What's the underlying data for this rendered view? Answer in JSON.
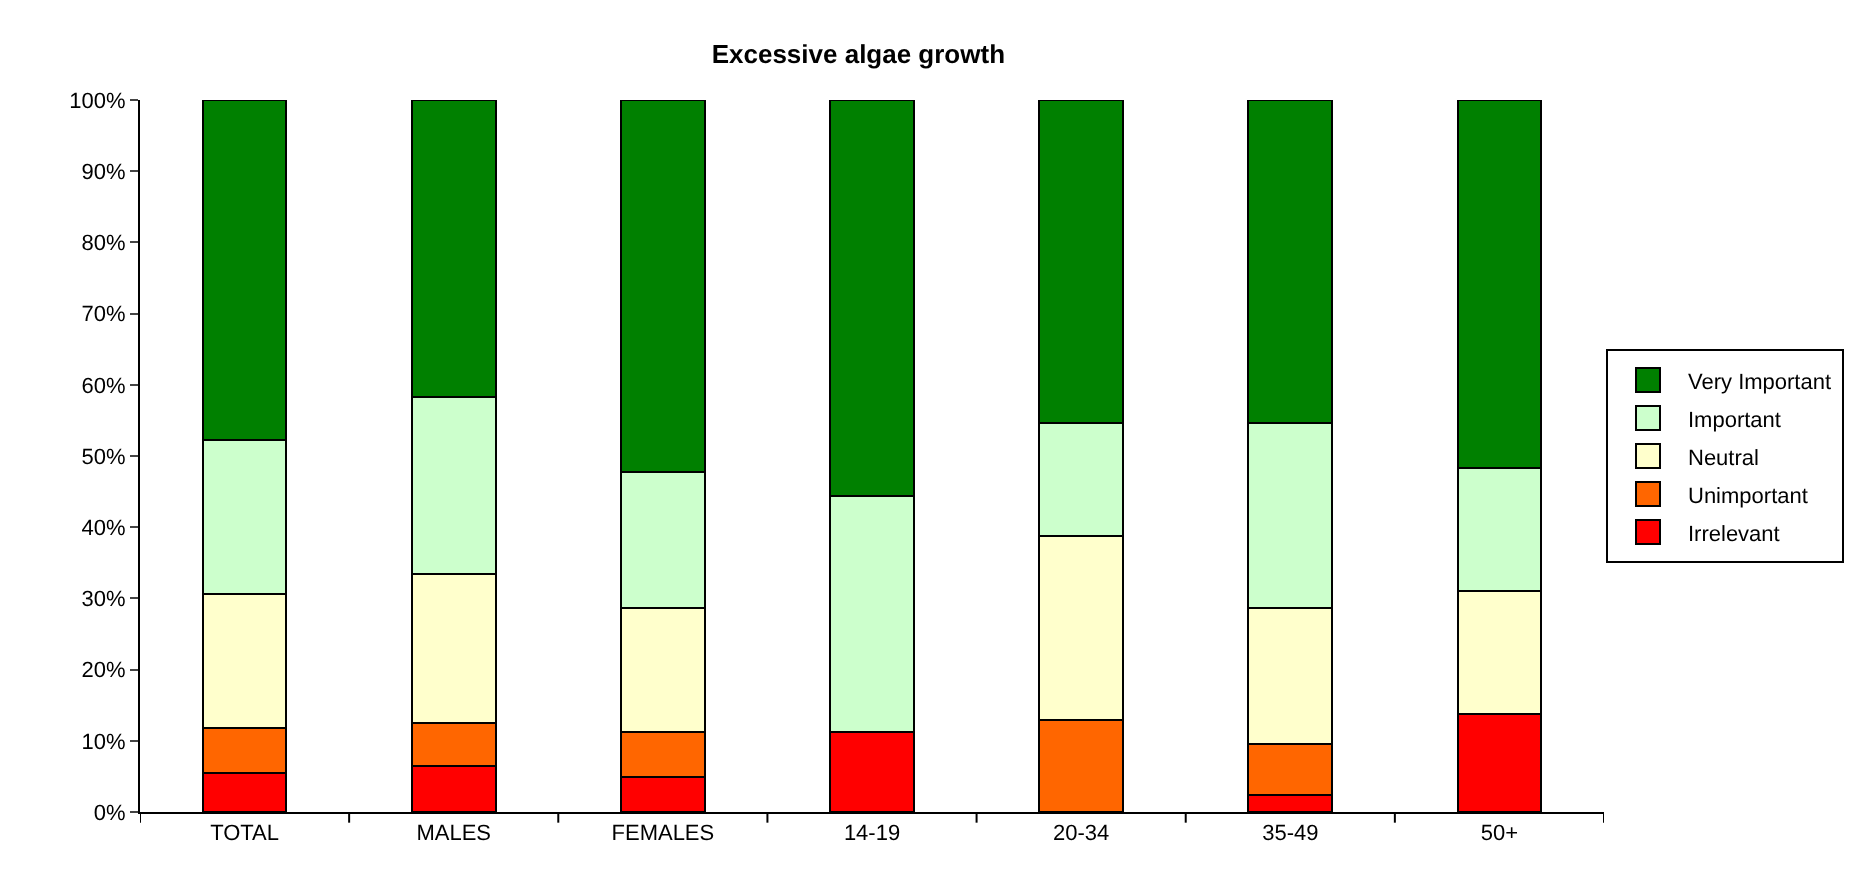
{
  "chart_data": {
    "type": "bar",
    "title": "Excessive algae growth",
    "stacked": true,
    "legend": "right",
    "categories": [
      "TOTAL",
      "MALES",
      "FEMALES",
      "14-19",
      "20-34",
      "35-49",
      "50+"
    ],
    "ylim": [
      0,
      100
    ],
    "yticks": [
      {
        "value": 0,
        "label": "0%"
      },
      {
        "value": 10,
        "label": "10%"
      },
      {
        "value": 20,
        "label": "20%"
      },
      {
        "value": 30,
        "label": "30%"
      },
      {
        "value": 40,
        "label": "40%"
      },
      {
        "value": 50,
        "label": "50%"
      },
      {
        "value": 60,
        "label": "60%"
      },
      {
        "value": 70,
        "label": "70%"
      },
      {
        "value": 80,
        "label": "80%"
      },
      {
        "value": 90,
        "label": "90%"
      },
      {
        "value": 100,
        "label": "100%"
      }
    ],
    "series": [
      {
        "name": "Irrelevant",
        "color": "#ff0000",
        "values": [
          5.5,
          6.4,
          4.9,
          11.3,
          0,
          2.4,
          13.7
        ]
      },
      {
        "name": "Unimportant",
        "color": "#ff6600",
        "values": [
          6.3,
          6.1,
          6.4,
          0,
          12.9,
          7.1,
          0
        ]
      },
      {
        "name": "Neutral",
        "color": "#ffffcc",
        "values": [
          18.8,
          20.9,
          17.3,
          0,
          25.8,
          19.1,
          17.3
        ]
      },
      {
        "name": "Important",
        "color": "#ccffcc",
        "values": [
          21.7,
          24.9,
          19.1,
          33.1,
          16.0,
          26.1,
          17.3
        ]
      },
      {
        "name": "Very Important",
        "color": "#008000",
        "values": [
          47.7,
          41.7,
          52.3,
          55.6,
          45.3,
          45.3,
          51.7
        ]
      }
    ]
  }
}
